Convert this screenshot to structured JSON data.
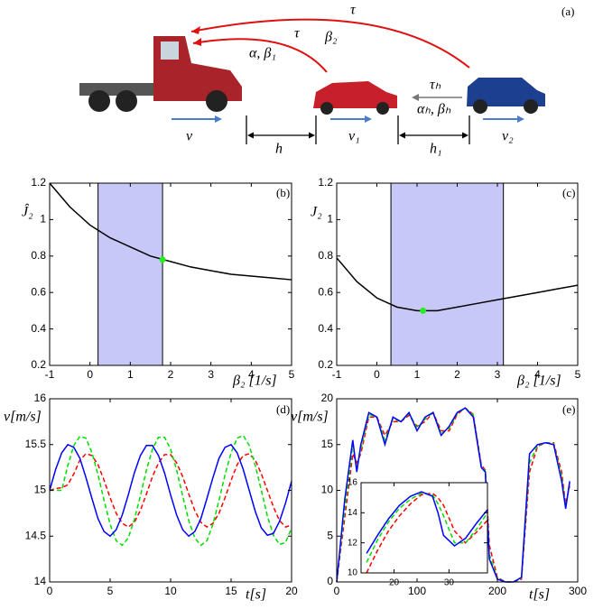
{
  "diagram": {
    "panel_label": "(a)",
    "tau_top": "τ",
    "beta2": "β₂",
    "tau_mid": "τ",
    "alpha_beta1": "α, β₁",
    "tau_h": "τₕ",
    "alpha_beta_h": "αₕ, βₕ",
    "v": "v",
    "h": "h",
    "v1": "v₁",
    "h1": "h₁",
    "v2": "v₂"
  },
  "chart_data": [
    {
      "type": "line",
      "panel_label": "(b)",
      "ylabel": "Ĵ₂",
      "xlabel": "β₂ [1/s]",
      "xlim": [
        -1,
        5
      ],
      "ylim": [
        0.2,
        1.2
      ],
      "xticks": [
        -1,
        0,
        1,
        2,
        3,
        4,
        5
      ],
      "yticks": [
        0.2,
        0.4,
        0.6,
        0.8,
        1,
        1.2
      ],
      "shade": [
        0.2,
        1.8
      ],
      "shade_color": "#c8c8f8",
      "highlight": {
        "x": 1.8,
        "y": 0.78,
        "color": "#22ee22"
      },
      "x": [
        -1,
        -0.5,
        0,
        0.5,
        1,
        1.5,
        2,
        2.5,
        3,
        3.5,
        4,
        4.5,
        5
      ],
      "series": [
        {
          "color": "#000000",
          "dashed": false,
          "values": [
            1.2,
            1.07,
            0.97,
            0.9,
            0.85,
            0.8,
            0.77,
            0.74,
            0.72,
            0.7,
            0.69,
            0.68,
            0.67
          ]
        }
      ]
    },
    {
      "type": "line",
      "panel_label": "(c)",
      "ylabel": "J₂",
      "xlabel": "β₂ [1/s]",
      "xlim": [
        -1,
        5
      ],
      "ylim": [
        0.2,
        1.2
      ],
      "xticks": [
        -1,
        0,
        1,
        2,
        3,
        4,
        5
      ],
      "yticks": [
        0.2,
        0.4,
        0.6,
        0.8,
        1,
        1.2
      ],
      "shade": [
        0.35,
        3.15
      ],
      "shade_color": "#c8c8f8",
      "highlight": {
        "x": 1.15,
        "y": 0.5,
        "color": "#22ee22"
      },
      "x": [
        -1,
        -0.5,
        0,
        0.5,
        1,
        1.5,
        2,
        2.5,
        3,
        3.5,
        4,
        4.5,
        5
      ],
      "series": [
        {
          "color": "#000000",
          "dashed": false,
          "values": [
            0.79,
            0.66,
            0.57,
            0.52,
            0.5,
            0.5,
            0.52,
            0.54,
            0.56,
            0.58,
            0.6,
            0.62,
            0.64
          ]
        }
      ]
    },
    {
      "type": "line",
      "panel_label": "(d)",
      "ylabel": "v[m/s]",
      "xlabel": "t[s]",
      "xlim": [
        0,
        20
      ],
      "ylim": [
        14,
        16
      ],
      "xticks": [
        0,
        5,
        10,
        15,
        20
      ],
      "yticks": [
        14,
        14.5,
        15,
        15.5,
        16
      ],
      "x": [
        0,
        0.5,
        1,
        1.5,
        2,
        2.5,
        3,
        3.5,
        4,
        4.5,
        5,
        5.5,
        6,
        6.5,
        7,
        7.5,
        8,
        8.5,
        9,
        9.5,
        10,
        10.5,
        11,
        11.5,
        12,
        12.5,
        13,
        13.5,
        14,
        14.5,
        15,
        15.5,
        16,
        16.5,
        17,
        17.5,
        18,
        18.5,
        19,
        19.5,
        20
      ],
      "series": [
        {
          "color": "#ff0000",
          "dashed": true,
          "values": [
            15,
            15.02,
            15.03,
            15.06,
            15.18,
            15.33,
            15.4,
            15.38,
            15.28,
            15.11,
            14.92,
            14.75,
            14.64,
            14.6,
            14.65,
            14.78,
            14.96,
            15.15,
            15.3,
            15.39,
            15.39,
            15.3,
            15.15,
            14.96,
            14.78,
            14.65,
            14.6,
            14.64,
            14.75,
            14.92,
            15.11,
            15.28,
            15.38,
            15.4,
            15.33,
            15.18,
            15,
            14.82,
            14.67,
            14.6,
            14.62
          ]
        },
        {
          "color": "#00dd00",
          "dashed": true,
          "values": [
            15,
            15,
            15,
            15.27,
            15.49,
            15.59,
            15.57,
            15.41,
            15.17,
            14.89,
            14.63,
            14.45,
            14.4,
            14.48,
            14.68,
            14.94,
            15.22,
            15.45,
            15.58,
            15.58,
            15.45,
            15.22,
            14.94,
            14.67,
            14.48,
            14.4,
            14.45,
            14.63,
            14.89,
            15.17,
            15.41,
            15.57,
            15.6,
            15.49,
            15.27,
            15,
            14.72,
            14.51,
            14.41,
            14.43,
            14.59
          ]
        },
        {
          "color": "#0000ff",
          "dashed": false,
          "values": [
            15,
            15.23,
            15.41,
            15.5,
            15.47,
            15.35,
            15.14,
            14.91,
            14.69,
            14.55,
            14.5,
            14.57,
            14.73,
            14.95,
            15.19,
            15.38,
            15.49,
            15.49,
            15.38,
            15.19,
            14.95,
            14.73,
            14.57,
            14.5,
            14.55,
            14.69,
            14.91,
            15.14,
            15.35,
            15.47,
            15.5,
            15.41,
            15.23,
            15,
            14.77,
            14.59,
            14.51,
            14.53,
            14.66,
            14.86,
            15.1
          ]
        }
      ]
    },
    {
      "type": "line",
      "panel_label": "(e)",
      "ylabel": "v[m/s]",
      "xlabel": "t[s]",
      "xlim": [
        0,
        300
      ],
      "ylim": [
        0,
        20
      ],
      "xticks": [
        0,
        100,
        200,
        300
      ],
      "yticks": [
        0,
        5,
        10,
        15,
        20
      ],
      "x": [
        0,
        10,
        20,
        25,
        30,
        40,
        50,
        60,
        70,
        80,
        90,
        100,
        110,
        120,
        130,
        140,
        150,
        160,
        170,
        180,
        185,
        190,
        200,
        210,
        220,
        230,
        240,
        250,
        260,
        270,
        280,
        285,
        290
      ],
      "series": [
        {
          "color": "#ff0000",
          "dashed": true,
          "values": [
            0,
            7,
            14,
            13,
            14,
            18,
            18,
            16,
            17.5,
            17.5,
            18.2,
            17,
            17.5,
            18.5,
            16.5,
            16.5,
            18.3,
            19,
            18.3,
            12.8,
            12.2,
            4,
            0.5,
            0,
            0,
            0.3,
            12,
            14.8,
            15.2,
            15.2,
            12,
            8.5,
            10.5
          ]
        },
        {
          "color": "#00dd00",
          "dashed": true,
          "values": [
            0,
            8,
            15,
            12.5,
            14.5,
            18.3,
            18,
            15.5,
            17.8,
            17.5,
            18.4,
            16.8,
            17.8,
            18.5,
            16.2,
            16.8,
            18.4,
            19,
            18.2,
            12.6,
            12.1,
            3,
            0.4,
            0,
            0,
            0.4,
            13,
            14.9,
            15.2,
            15.1,
            11.5,
            8.2,
            10.8
          ]
        },
        {
          "color": "#0000ff",
          "dashed": false,
          "values": [
            0,
            9,
            15.5,
            12,
            15,
            18.5,
            18,
            15,
            18,
            17.5,
            18.5,
            16.5,
            18,
            18.5,
            16,
            17,
            18.5,
            19,
            18,
            12.5,
            12,
            2.5,
            0.3,
            0,
            0,
            0.5,
            14,
            15,
            15.2,
            15,
            11,
            8,
            11
          ]
        }
      ]
    },
    {
      "type": "line",
      "xlim": [
        14,
        37
      ],
      "ylim": [
        10,
        16
      ],
      "xticks": [
        20,
        30
      ],
      "yticks": [
        10,
        12,
        14,
        16
      ],
      "x": [
        15,
        17,
        19,
        21,
        23,
        25,
        27,
        28,
        29,
        31,
        33,
        35,
        37
      ],
      "series": [
        {
          "color": "#ff0000",
          "dashed": true,
          "values": [
            10,
            11.5,
            12.8,
            13.8,
            14.6,
            15.2,
            15.3,
            15,
            14.5,
            12.8,
            12,
            12.7,
            13.5
          ]
        },
        {
          "color": "#00dd00",
          "dashed": true,
          "values": [
            10.7,
            12.2,
            13.4,
            14.3,
            14.9,
            15.3,
            15.2,
            14.6,
            13.8,
            12,
            12,
            12.9,
            14
          ]
        },
        {
          "color": "#0000ff",
          "dashed": false,
          "values": [
            11.3,
            12.5,
            13.6,
            14.5,
            15.1,
            15.4,
            15.1,
            14,
            12.5,
            11.8,
            12.3,
            13.3,
            14.2
          ]
        }
      ]
    }
  ]
}
